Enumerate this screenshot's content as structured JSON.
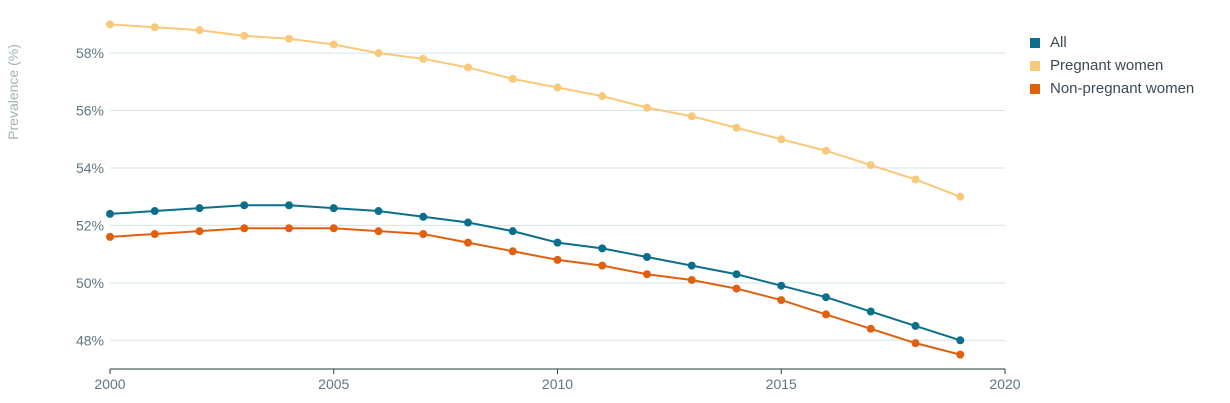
{
  "chart_data": {
    "type": "line",
    "ylabel": "Prevalence (%)",
    "xlabel": "",
    "x": [
      2000,
      2001,
      2002,
      2003,
      2004,
      2005,
      2006,
      2007,
      2008,
      2009,
      2010,
      2011,
      2012,
      2013,
      2014,
      2015,
      2016,
      2017,
      2018,
      2019
    ],
    "xlim": [
      2000,
      2020
    ],
    "ylim": [
      47,
      59.5
    ],
    "x_ticks": [
      "2000",
      "2005",
      "2010",
      "2015",
      "2020"
    ],
    "y_ticks": [
      "48%",
      "50%",
      "52%",
      "54%",
      "56%",
      "58%"
    ],
    "grid": "horizontal",
    "legend_position": "top-right",
    "series": [
      {
        "name": "All",
        "color": "#0b6e8a",
        "values": [
          52.4,
          52.5,
          52.6,
          52.7,
          52.7,
          52.6,
          52.5,
          52.3,
          52.1,
          51.8,
          51.4,
          51.2,
          50.9,
          50.6,
          50.3,
          49.9,
          49.5,
          49.0,
          48.5,
          48.0
        ]
      },
      {
        "name": "Pregnant women",
        "color": "#f9c97a",
        "values": [
          59.0,
          58.9,
          58.8,
          58.6,
          58.5,
          58.3,
          58.0,
          57.8,
          57.5,
          57.1,
          56.8,
          56.5,
          56.1,
          55.8,
          55.4,
          55.0,
          54.6,
          54.1,
          53.6,
          53.0
        ]
      },
      {
        "name": "Non-pregnant women",
        "color": "#e0600f",
        "values": [
          51.6,
          51.7,
          51.8,
          51.9,
          51.9,
          51.9,
          51.8,
          51.7,
          51.4,
          51.1,
          50.8,
          50.6,
          50.3,
          50.1,
          49.8,
          49.4,
          48.9,
          48.4,
          47.9,
          47.5
        ]
      }
    ]
  }
}
